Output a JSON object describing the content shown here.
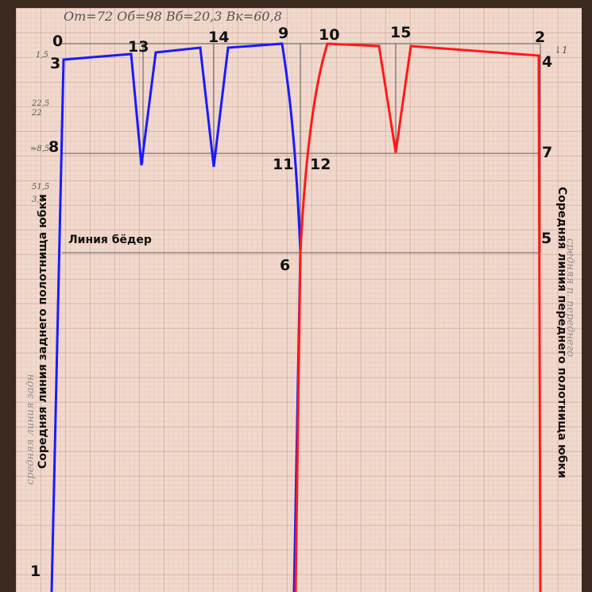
{
  "measurements": "От=72   Об=98   Вб=20,3   Вк=60,8",
  "points": {
    "p0": "0",
    "p1": "1",
    "p2": "2",
    "p3": "3",
    "p4": "4",
    "p5": "5",
    "p6": "6",
    "p7": "7",
    "p8": "8",
    "p9": "9",
    "p10": "10",
    "p11": "11",
    "p12": "12",
    "p13": "13",
    "p14": "14",
    "p15": "15"
  },
  "hip_line_label": "Линия бёдер",
  "back_center_caption": "Соредняя линия заднего полотнища юбки",
  "front_center_caption": "Соредняя линия переднего полотнища юбки",
  "side_notes": {
    "n1": "1,5",
    "n2": "22,5",
    "n3": "22",
    "n4": "≈8,5",
    "n5": "51,5",
    "n6": "3,4",
    "n7": "↓1"
  },
  "pale_notes": {
    "back": "средняя линия задн",
    "front": "средняя п. переднего"
  },
  "colors": {
    "back_panel": "#1a1aff",
    "front_panel": "#ff1a1a",
    "construction": "#5a5a5a"
  }
}
